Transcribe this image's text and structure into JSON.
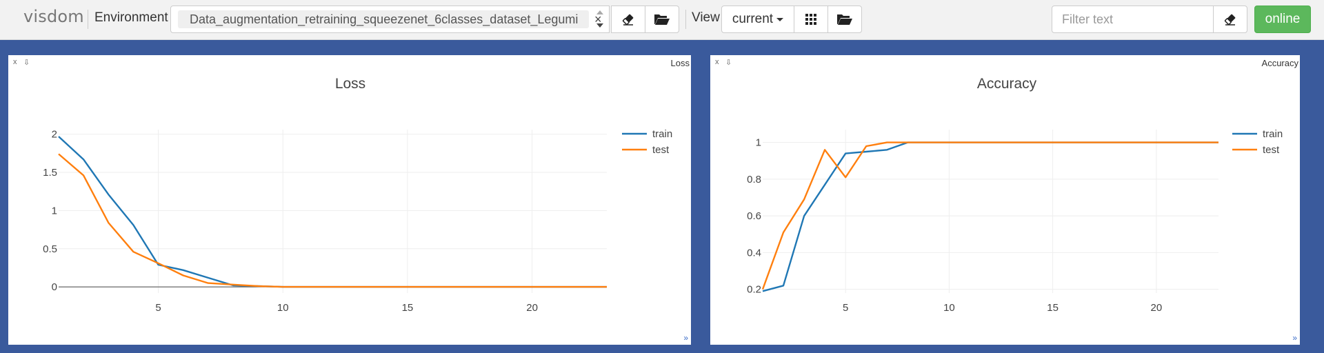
{
  "navbar": {
    "brand": "visdom",
    "environment_label": "Environment",
    "environment_value": "Data_augmentation_retraining_squeezenet_6classes_dataset_Legumi",
    "environment_clear": "×",
    "view_label": "View",
    "view_value": "current",
    "filter_placeholder": "Filter text",
    "online_label": "online",
    "icons": [
      "eraser-icon",
      "folder-open-icon",
      "grid-icon",
      "folder-open-icon",
      "eraser-icon"
    ]
  },
  "colors": {
    "background": "#3a5a9c",
    "train": "#1f77b4",
    "test": "#ff7f0e",
    "online": "#5cb85c"
  },
  "panes": [
    {
      "corner_title": "Loss",
      "close": "x",
      "download": "⇩",
      "resize": "»"
    },
    {
      "corner_title": "Accuracy",
      "close": "x",
      "download": "⇩",
      "resize": "»"
    }
  ],
  "chart_data": [
    {
      "type": "line",
      "title": "Loss",
      "xlabel": "",
      "ylabel": "",
      "xlim": [
        1,
        23
      ],
      "ylim": [
        -0.08,
        2.06
      ],
      "xticks": [
        5,
        10,
        15,
        20
      ],
      "yticks": [
        0,
        0.5,
        1,
        1.5,
        2
      ],
      "grid": true,
      "legend": "top-right",
      "series": [
        {
          "name": "train",
          "color": "#1f77b4",
          "x": [
            1,
            2,
            3,
            4,
            5,
            6,
            7,
            8,
            9,
            10,
            11,
            12,
            13,
            14,
            15,
            16,
            17,
            18,
            19,
            20,
            21,
            22,
            23
          ],
          "values": [
            1.97,
            1.67,
            1.21,
            0.81,
            0.29,
            0.22,
            0.12,
            0.02,
            0.01,
            0,
            0,
            0,
            0,
            0,
            0,
            0,
            0,
            0,
            0,
            0,
            0,
            0,
            0
          ]
        },
        {
          "name": "test",
          "color": "#ff7f0e",
          "x": [
            1,
            2,
            3,
            4,
            5,
            6,
            7,
            8,
            9,
            10,
            11,
            12,
            13,
            14,
            15,
            16,
            17,
            18,
            19,
            20,
            21,
            22,
            23
          ],
          "values": [
            1.74,
            1.46,
            0.84,
            0.46,
            0.31,
            0.15,
            0.05,
            0.03,
            0.01,
            0,
            0,
            0,
            0,
            0,
            0,
            0,
            0,
            0,
            0,
            0,
            0,
            0,
            0
          ]
        }
      ]
    },
    {
      "type": "line",
      "title": "Accuracy",
      "xlabel": "",
      "ylabel": "",
      "xlim": [
        1,
        23
      ],
      "ylim": [
        0.18,
        1.07
      ],
      "xticks": [
        5,
        10,
        15,
        20
      ],
      "yticks": [
        0.2,
        0.4,
        0.6,
        0.8,
        1
      ],
      "grid": true,
      "legend": "top-right",
      "series": [
        {
          "name": "train",
          "color": "#1f77b4",
          "x": [
            1,
            2,
            3,
            4,
            5,
            6,
            7,
            8,
            9,
            10,
            11,
            12,
            13,
            14,
            15,
            16,
            17,
            18,
            19,
            20,
            21,
            22,
            23
          ],
          "values": [
            0.19,
            0.22,
            0.6,
            0.77,
            0.94,
            0.95,
            0.96,
            1,
            1,
            1,
            1,
            1,
            1,
            1,
            1,
            1,
            1,
            1,
            1,
            1,
            1,
            1,
            1
          ]
        },
        {
          "name": "test",
          "color": "#ff7f0e",
          "x": [
            1,
            2,
            3,
            4,
            5,
            6,
            7,
            8,
            9,
            10,
            11,
            12,
            13,
            14,
            15,
            16,
            17,
            18,
            19,
            20,
            21,
            22,
            23
          ],
          "values": [
            0.2,
            0.51,
            0.69,
            0.96,
            0.81,
            0.98,
            1,
            1,
            1,
            1,
            1,
            1,
            1,
            1,
            1,
            1,
            1,
            1,
            1,
            1,
            1,
            1,
            1
          ]
        }
      ]
    }
  ]
}
